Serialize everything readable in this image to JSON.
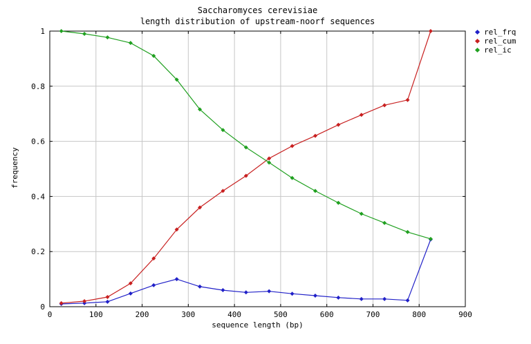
{
  "page": {
    "background": "#ffffff"
  },
  "chart_data": {
    "type": "line",
    "title": "Saccharomyces cerevisiae",
    "subtitle": "length distribution of upstream-noorf sequences",
    "xlabel": "sequence length (bp)",
    "ylabel": "frequency",
    "xlim": [
      0,
      900
    ],
    "ylim": [
      0,
      1
    ],
    "x_ticks": [
      0,
      100,
      200,
      300,
      400,
      500,
      600,
      700,
      800,
      900
    ],
    "y_ticks": [
      0,
      0.2,
      0.4,
      0.6,
      0.8,
      1
    ],
    "grid": true,
    "grid_color": "#c6c6c6",
    "axis_color": "#000000",
    "legend_position": "outside-top-right",
    "marker": "diamond",
    "x": [
      25,
      75,
      125,
      175,
      225,
      275,
      325,
      375,
      425,
      475,
      525,
      575,
      625,
      675,
      725,
      775,
      825
    ],
    "series": [
      {
        "name": "rel_frq",
        "color": "#2020c8",
        "values": [
          0.01,
          0.013,
          0.018,
          0.048,
          0.078,
          0.1,
          0.073,
          0.06,
          0.052,
          0.056,
          0.047,
          0.04,
          0.033,
          0.028,
          0.028,
          0.023,
          0.244
        ]
      },
      {
        "name": "rel_cum",
        "color": "#c82020",
        "values": [
          0.013,
          0.02,
          0.035,
          0.085,
          0.175,
          0.28,
          0.36,
          0.42,
          0.475,
          0.538,
          0.583,
          0.62,
          0.66,
          0.696,
          0.731,
          0.75,
          1.0
        ]
      },
      {
        "name": "rel_ic",
        "color": "#20a020",
        "values": [
          1.0,
          0.99,
          0.977,
          0.957,
          0.91,
          0.824,
          0.716,
          0.641,
          0.578,
          0.523,
          0.467,
          0.42,
          0.377,
          0.337,
          0.304,
          0.271,
          0.246
        ]
      }
    ]
  }
}
